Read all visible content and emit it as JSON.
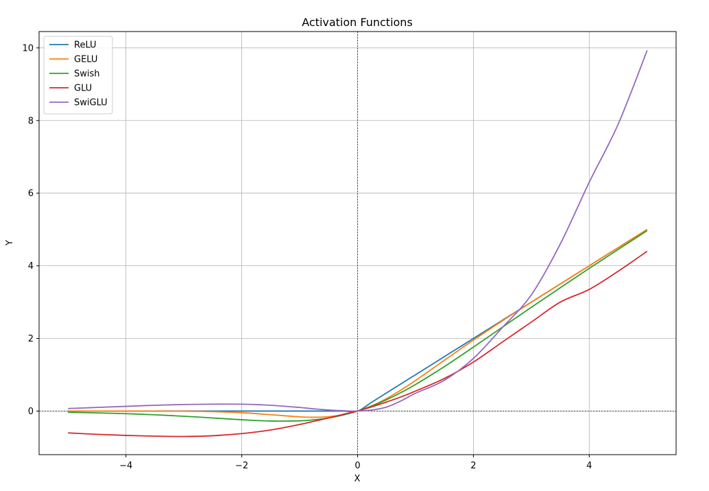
{
  "chart_data": {
    "type": "line",
    "title": "Activation Functions",
    "xlabel": "X",
    "ylabel": "Y",
    "xlim": [
      -5.5,
      5.5
    ],
    "ylim": [
      -1.2,
      10.45
    ],
    "x_ticks": [
      -4,
      -2,
      0,
      2,
      4
    ],
    "x_tick_labels": [
      "−4",
      "−2",
      "0",
      "2",
      "4"
    ],
    "y_ticks": [
      0,
      2,
      4,
      6,
      8,
      10
    ],
    "y_tick_labels": [
      "0",
      "2",
      "4",
      "6",
      "8",
      "10"
    ],
    "grid": true,
    "zero_reference_lines": true,
    "legend_position": "top-left",
    "x": [
      -5,
      -4.5,
      -4,
      -3.5,
      -3,
      -2.5,
      -2,
      -1.5,
      -1,
      -0.75,
      -0.5,
      -0.25,
      0,
      0.25,
      0.5,
      0.75,
      1,
      1.5,
      2,
      2.5,
      3,
      3.5,
      4,
      4.5,
      5
    ],
    "series": [
      {
        "name": "ReLU",
        "color": "#1f77b4",
        "values": [
          0,
          0,
          0,
          0,
          0,
          0,
          0,
          0,
          0,
          0,
          0,
          0,
          0,
          0.25,
          0.5,
          0.75,
          1,
          1.5,
          2,
          2.5,
          3,
          3.5,
          4,
          4.5,
          5
        ]
      },
      {
        "name": "GELU",
        "color": "#ff7f0e",
        "values": [
          0,
          0,
          -0.0001,
          -0.0008,
          -0.004,
          -0.015,
          -0.045,
          -0.1,
          -0.159,
          -0.17,
          -0.154,
          -0.1,
          0,
          0.15,
          0.346,
          0.58,
          0.841,
          1.4,
          1.955,
          2.485,
          2.996,
          3.499,
          4,
          4.5,
          5
        ]
      },
      {
        "name": "Swish",
        "color": "#2ca02c",
        "values": [
          -0.033,
          -0.05,
          -0.072,
          -0.102,
          -0.142,
          -0.19,
          -0.238,
          -0.274,
          -0.269,
          -0.239,
          -0.189,
          -0.11,
          0,
          0.14,
          0.311,
          0.511,
          0.731,
          1.227,
          1.762,
          2.31,
          2.858,
          3.395,
          3.928,
          4.451,
          4.967
        ]
      },
      {
        "name": "GLU",
        "color": "#d62728",
        "values": [
          -0.6,
          -0.64,
          -0.67,
          -0.69,
          -0.7,
          -0.68,
          -0.62,
          -0.52,
          -0.37,
          -0.28,
          -0.19,
          -0.09,
          0,
          0.12,
          0.25,
          0.39,
          0.55,
          0.9,
          1.35,
          1.9,
          2.45,
          3.0,
          3.35,
          3.85,
          4.4
        ]
      },
      {
        "name": "SwiGLU",
        "color": "#9467bd",
        "values": [
          0.07,
          0.1,
          0.13,
          0.16,
          0.18,
          0.19,
          0.19,
          0.16,
          0.1,
          0.06,
          0.03,
          0.01,
          0,
          0.03,
          0.11,
          0.28,
          0.49,
          0.85,
          1.45,
          2.3,
          3.2,
          4.6,
          6.3,
          7.9,
          9.93
        ]
      }
    ]
  }
}
